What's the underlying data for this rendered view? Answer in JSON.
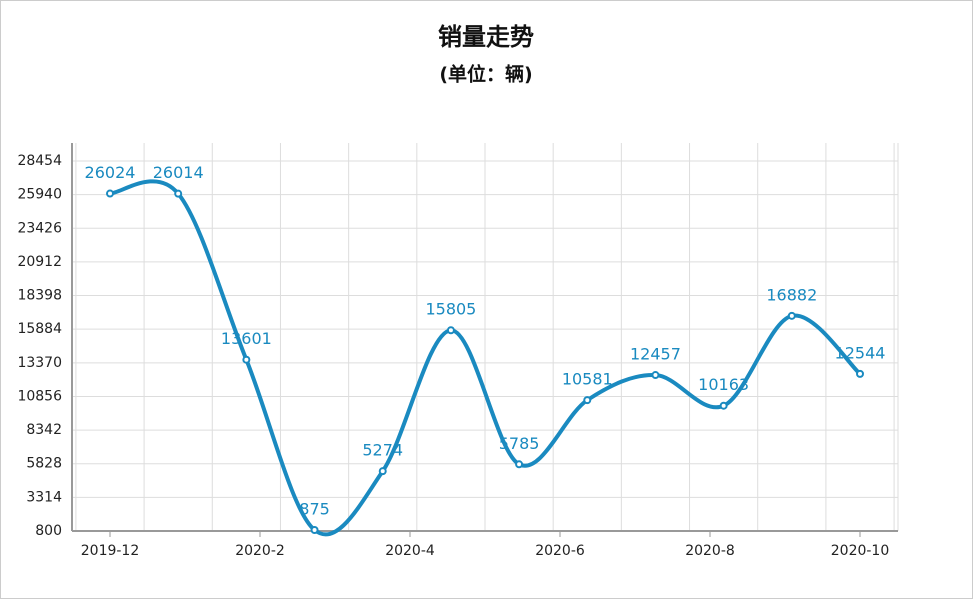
{
  "chart_data": {
    "type": "line",
    "title": "销量走势",
    "subtitle": "(单位：辆)",
    "x_axis_labels": [
      "2019-12",
      "2020-2",
      "2020-4",
      "2020-6",
      "2020-8",
      "2020-10"
    ],
    "values": [
      26024,
      26014,
      13601,
      875,
      5274,
      15805,
      5785,
      10581,
      12457,
      10163,
      16882,
      12544
    ],
    "color": "#1a8ac0",
    "ylim": [
      800,
      29800
    ],
    "yticks": [
      800,
      3314,
      5828,
      8342,
      10856,
      13370,
      15884,
      18398,
      20912,
      23426,
      25940,
      28454
    ],
    "grid": true
  }
}
